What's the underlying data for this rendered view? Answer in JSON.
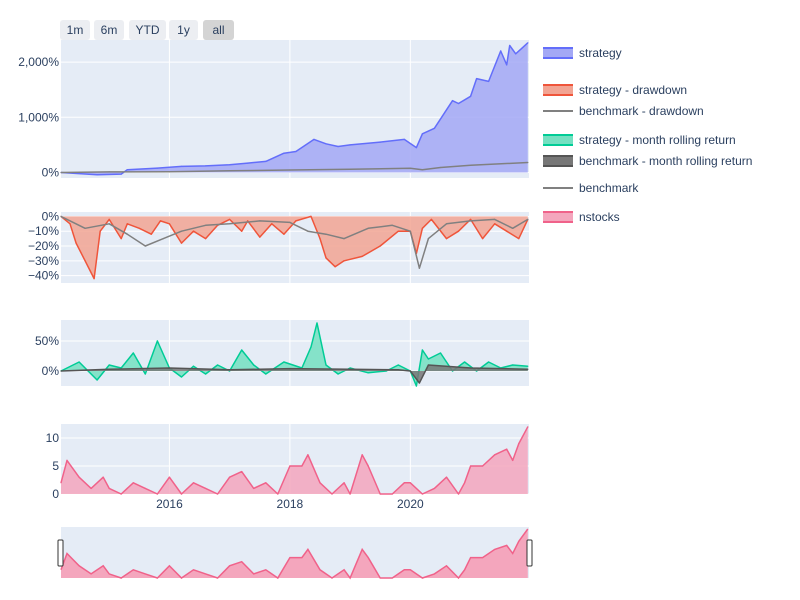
{
  "range_selector": {
    "buttons": [
      {
        "label": "1m",
        "name": "range-1m-button",
        "active": false
      },
      {
        "label": "6m",
        "name": "range-6m-button",
        "active": false
      },
      {
        "label": "YTD",
        "name": "range-ytd-button",
        "active": false
      },
      {
        "label": "1y",
        "name": "range-1y-button",
        "active": false
      },
      {
        "label": "all",
        "name": "range-all-button",
        "active": true
      }
    ]
  },
  "legend": {
    "items": [
      {
        "name": "legend-strategy",
        "label": "strategy",
        "type": "area",
        "color": "#636efa",
        "fill": "#a3a8f5"
      },
      {
        "name": "legend-strategy-drawdown",
        "label": "strategy - drawdown",
        "type": "area",
        "color": "#ef553b",
        "fill": "#f2a493"
      },
      {
        "name": "legend-benchmark-drawdown",
        "label": "benchmark - drawdown",
        "type": "line",
        "color": "#808080"
      },
      {
        "name": "legend-strategy-month-rolling",
        "label": "strategy - month rolling return",
        "type": "area",
        "color": "#00cc96",
        "fill": "#74e0c1"
      },
      {
        "name": "legend-benchmark-month-rolling",
        "label": "benchmark - month rolling return",
        "type": "area",
        "color": "#555555",
        "fill": "#777777"
      },
      {
        "name": "legend-benchmark",
        "label": "benchmark",
        "type": "line",
        "color": "#808080"
      },
      {
        "name": "legend-nstocks",
        "label": "nstocks",
        "type": "area",
        "color": "#f0628a",
        "fill": "#f4a6bd"
      }
    ]
  },
  "chart_data": [
    {
      "type": "area",
      "panel": "equity",
      "x_range": [
        "2014-04",
        "2021-12"
      ],
      "y_range": [
        -100,
        2400
      ],
      "y_ticks": [
        {
          "v": 0,
          "label": "0%"
        },
        {
          "v": 1000,
          "label": "1,000%"
        },
        {
          "v": 2000,
          "label": "2,000%"
        }
      ],
      "series": [
        {
          "name": "strategy",
          "x": [
            2014.2,
            2014.8,
            2015.2,
            2015.3,
            2015.8,
            2016.2,
            2016.6,
            2017.0,
            2017.3,
            2017.6,
            2017.9,
            2018.1,
            2018.4,
            2018.6,
            2018.8,
            2019.0,
            2019.5,
            2019.9,
            2020.1,
            2020.2,
            2020.4,
            2020.7,
            2020.8,
            2021.0,
            2021.1,
            2021.3,
            2021.5,
            2021.6,
            2021.65,
            2021.75,
            2021.85,
            2021.95
          ],
          "y": [
            0,
            -40,
            -30,
            50,
            80,
            110,
            120,
            140,
            170,
            200,
            350,
            380,
            600,
            520,
            470,
            500,
            550,
            600,
            450,
            700,
            800,
            1300,
            1250,
            1380,
            1700,
            1650,
            2200,
            1950,
            2300,
            2150,
            2250,
            2350
          ]
        },
        {
          "name": "benchmark",
          "x": [
            2014.2,
            2015.0,
            2016.0,
            2017.0,
            2018.0,
            2019.0,
            2020.0,
            2020.2,
            2020.5,
            2021.0,
            2021.95
          ],
          "y": [
            0,
            10,
            15,
            30,
            45,
            60,
            75,
            50,
            90,
            130,
            180
          ]
        }
      ]
    },
    {
      "type": "area",
      "panel": "drawdown",
      "x_range": [
        "2014-04",
        "2021-12"
      ],
      "y_range": [
        -45,
        3
      ],
      "y_ticks": [
        {
          "v": 0,
          "label": "0%"
        },
        {
          "v": -10,
          "label": "−10%"
        },
        {
          "v": -20,
          "label": "−20%"
        },
        {
          "v": -30,
          "label": "−30%"
        },
        {
          "v": -40,
          "label": "−40%"
        }
      ],
      "series": [
        {
          "name": "strategy - drawdown",
          "x": [
            2014.2,
            2014.35,
            2014.45,
            2014.6,
            2014.75,
            2014.85,
            2015.0,
            2015.2,
            2015.3,
            2015.5,
            2015.7,
            2015.85,
            2016.0,
            2016.2,
            2016.4,
            2016.6,
            2016.8,
            2017.0,
            2017.2,
            2017.3,
            2017.5,
            2017.7,
            2017.9,
            2018.1,
            2018.35,
            2018.5,
            2018.6,
            2018.75,
            2018.9,
            2019.2,
            2019.5,
            2019.8,
            2020.0,
            2020.1,
            2020.2,
            2020.35,
            2020.6,
            2020.8,
            2021.0,
            2021.2,
            2021.4,
            2021.6,
            2021.8,
            2021.95
          ],
          "y": [
            0,
            -5,
            -18,
            -30,
            -42,
            -10,
            -2,
            -15,
            -5,
            -8,
            -12,
            -3,
            -5,
            -18,
            -10,
            -15,
            -6,
            -2,
            -10,
            -3,
            -14,
            -5,
            -12,
            -3,
            0,
            -15,
            -28,
            -34,
            -30,
            -27,
            -20,
            -10,
            -10,
            -25,
            -8,
            -2,
            -15,
            -10,
            -2,
            -15,
            -5,
            -10,
            -15,
            -2
          ]
        },
        {
          "name": "benchmark - drawdown",
          "x": [
            2014.2,
            2014.6,
            2015.0,
            2015.3,
            2015.6,
            2015.9,
            2016.2,
            2016.6,
            2017.0,
            2017.5,
            2018.0,
            2018.3,
            2018.6,
            2018.9,
            2019.3,
            2019.7,
            2020.0,
            2020.15,
            2020.3,
            2020.6,
            2021.0,
            2021.4,
            2021.7,
            2021.95
          ],
          "y": [
            0,
            -8,
            -5,
            -12,
            -20,
            -15,
            -10,
            -6,
            -5,
            -3,
            -4,
            -10,
            -12,
            -15,
            -8,
            -6,
            -10,
            -35,
            -15,
            -5,
            -3,
            -2,
            -8,
            -2
          ]
        }
      ]
    },
    {
      "type": "area",
      "panel": "rolling",
      "x_range": [
        "2014-04",
        "2021-12"
      ],
      "y_range": [
        -25,
        85
      ],
      "y_ticks": [
        {
          "v": 0,
          "label": "0%"
        },
        {
          "v": 50,
          "label": "50%"
        }
      ],
      "series": [
        {
          "name": "strategy - month rolling return",
          "x": [
            2014.2,
            2014.5,
            2014.8,
            2015.0,
            2015.2,
            2015.4,
            2015.6,
            2015.8,
            2016.0,
            2016.2,
            2016.4,
            2016.6,
            2016.8,
            2017.0,
            2017.2,
            2017.4,
            2017.6,
            2017.9,
            2018.2,
            2018.35,
            2018.45,
            2018.6,
            2018.8,
            2019.0,
            2019.3,
            2019.6,
            2019.8,
            2020.0,
            2020.1,
            2020.2,
            2020.3,
            2020.5,
            2020.7,
            2020.9,
            2021.1,
            2021.3,
            2021.5,
            2021.7,
            2021.95
          ],
          "y": [
            0,
            15,
            -15,
            10,
            5,
            30,
            -5,
            50,
            5,
            -10,
            8,
            -5,
            10,
            0,
            35,
            10,
            -5,
            15,
            5,
            40,
            80,
            10,
            -5,
            5,
            -3,
            0,
            10,
            0,
            -25,
            35,
            20,
            30,
            0,
            15,
            0,
            15,
            5,
            10,
            8
          ]
        },
        {
          "name": "benchmark - month rolling return",
          "x": [
            2014.2,
            2015.0,
            2016.0,
            2017.0,
            2018.0,
            2019.0,
            2019.8,
            2020.0,
            2020.15,
            2020.3,
            2021.0,
            2021.95
          ],
          "y": [
            0,
            3,
            5,
            2,
            4,
            3,
            2,
            0,
            -20,
            10,
            5,
            3
          ]
        }
      ]
    },
    {
      "type": "area",
      "panel": "nstocks",
      "x_range": [
        "2014-04",
        "2021-12"
      ],
      "x_ticks": [
        {
          "v": 2016,
          "label": "2016"
        },
        {
          "v": 2018,
          "label": "2018"
        },
        {
          "v": 2020,
          "label": "2020"
        }
      ],
      "y_range": [
        0,
        12.5
      ],
      "y_ticks": [
        {
          "v": 0,
          "label": "0"
        },
        {
          "v": 5,
          "label": "5"
        },
        {
          "v": 10,
          "label": "10"
        }
      ],
      "series": [
        {
          "name": "nstocks",
          "x": [
            2014.2,
            2014.3,
            2014.5,
            2014.7,
            2014.9,
            2015.0,
            2015.2,
            2015.4,
            2015.6,
            2015.8,
            2016.0,
            2016.2,
            2016.4,
            2016.6,
            2016.8,
            2017.0,
            2017.2,
            2017.4,
            2017.6,
            2017.8,
            2018.0,
            2018.2,
            2018.3,
            2018.5,
            2018.7,
            2018.9,
            2019.0,
            2019.2,
            2019.3,
            2019.5,
            2019.7,
            2019.9,
            2020.0,
            2020.2,
            2020.4,
            2020.6,
            2020.8,
            2020.9,
            2021.0,
            2021.2,
            2021.4,
            2021.6,
            2021.7,
            2021.8,
            2021.95
          ],
          "y": [
            2,
            6,
            3,
            1,
            3,
            1,
            0,
            2,
            1,
            0,
            3,
            0,
            2,
            1,
            0,
            3,
            4,
            1,
            2,
            0,
            5,
            5,
            7,
            2,
            0,
            2,
            0,
            7,
            5,
            0,
            0,
            2,
            2,
            0,
            1,
            3,
            0,
            2,
            5,
            5,
            7,
            8,
            6,
            9,
            12
          ]
        }
      ]
    }
  ]
}
